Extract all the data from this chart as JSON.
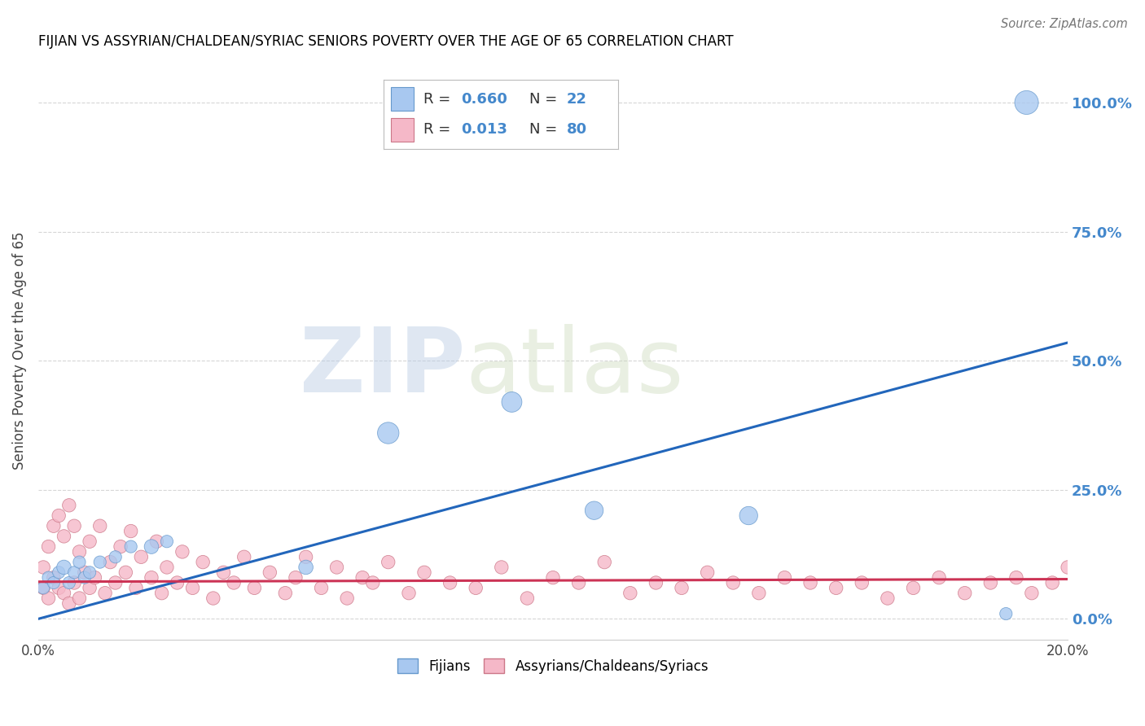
{
  "title": "FIJIAN VS ASSYRIAN/CHALDEAN/SYRIAC SENIORS POVERTY OVER THE AGE OF 65 CORRELATION CHART",
  "source": "Source: ZipAtlas.com",
  "ylabel": "Seniors Poverty Over the Age of 65",
  "ytick_labels": [
    "0.0%",
    "25.0%",
    "50.0%",
    "75.0%",
    "100.0%"
  ],
  "ytick_values": [
    0.0,
    0.25,
    0.5,
    0.75,
    1.0
  ],
  "xlim": [
    0.0,
    0.2
  ],
  "ylim": [
    -0.04,
    1.08
  ],
  "fijian_color": "#A8C8F0",
  "fijian_edge_color": "#6699CC",
  "assyrian_color": "#F5B8C8",
  "assyrian_edge_color": "#CC7788",
  "fijian_line_color": "#2266BB",
  "assyrian_line_color": "#CC3355",
  "fijian_R": 0.66,
  "fijian_N": 22,
  "assyrian_R": 0.013,
  "assyrian_N": 80,
  "watermark_zip": "ZIP",
  "watermark_atlas": "atlas",
  "background_color": "#FFFFFF",
  "grid_color": "#CCCCCC",
  "title_color": "#000000",
  "axis_label_color": "#4488CC",
  "fijian_line_x": [
    0.0,
    0.2
  ],
  "fijian_line_y": [
    0.0,
    0.535
  ],
  "assyrian_line_x": [
    0.0,
    0.2
  ],
  "assyrian_line_y": [
    0.072,
    0.077
  ],
  "fijian_scatter_x": [
    0.001,
    0.002,
    0.003,
    0.004,
    0.005,
    0.006,
    0.007,
    0.008,
    0.009,
    0.01,
    0.012,
    0.015,
    0.018,
    0.022,
    0.025,
    0.052,
    0.068,
    0.092,
    0.108,
    0.138,
    0.188,
    0.192
  ],
  "fijian_scatter_y": [
    0.06,
    0.08,
    0.07,
    0.09,
    0.1,
    0.07,
    0.09,
    0.11,
    0.08,
    0.09,
    0.11,
    0.12,
    0.14,
    0.14,
    0.15,
    0.1,
    0.36,
    0.42,
    0.21,
    0.2,
    0.01,
    1.0
  ],
  "fijian_scatter_sizes": [
    60,
    60,
    60,
    60,
    80,
    60,
    60,
    60,
    60,
    60,
    60,
    60,
    60,
    80,
    60,
    80,
    180,
    160,
    130,
    130,
    60,
    220
  ],
  "assyrian_scatter_x": [
    0.001,
    0.001,
    0.002,
    0.002,
    0.003,
    0.003,
    0.004,
    0.004,
    0.005,
    0.005,
    0.006,
    0.006,
    0.007,
    0.007,
    0.008,
    0.008,
    0.009,
    0.01,
    0.01,
    0.011,
    0.012,
    0.013,
    0.014,
    0.015,
    0.016,
    0.017,
    0.018,
    0.019,
    0.02,
    0.022,
    0.023,
    0.024,
    0.025,
    0.027,
    0.028,
    0.03,
    0.032,
    0.034,
    0.036,
    0.038,
    0.04,
    0.042,
    0.045,
    0.048,
    0.05,
    0.052,
    0.055,
    0.058,
    0.06,
    0.063,
    0.065,
    0.068,
    0.072,
    0.075,
    0.08,
    0.085,
    0.09,
    0.095,
    0.1,
    0.105,
    0.11,
    0.115,
    0.12,
    0.125,
    0.13,
    0.135,
    0.14,
    0.145,
    0.15,
    0.155,
    0.16,
    0.165,
    0.17,
    0.175,
    0.18,
    0.185,
    0.19,
    0.193,
    0.197,
    0.2
  ],
  "assyrian_scatter_y": [
    0.06,
    0.1,
    0.04,
    0.14,
    0.08,
    0.18,
    0.06,
    0.2,
    0.05,
    0.16,
    0.03,
    0.22,
    0.07,
    0.18,
    0.04,
    0.13,
    0.09,
    0.06,
    0.15,
    0.08,
    0.18,
    0.05,
    0.11,
    0.07,
    0.14,
    0.09,
    0.17,
    0.06,
    0.12,
    0.08,
    0.15,
    0.05,
    0.1,
    0.07,
    0.13,
    0.06,
    0.11,
    0.04,
    0.09,
    0.07,
    0.12,
    0.06,
    0.09,
    0.05,
    0.08,
    0.12,
    0.06,
    0.1,
    0.04,
    0.08,
    0.07,
    0.11,
    0.05,
    0.09,
    0.07,
    0.06,
    0.1,
    0.04,
    0.08,
    0.07,
    0.11,
    0.05,
    0.07,
    0.06,
    0.09,
    0.07,
    0.05,
    0.08,
    0.07,
    0.06,
    0.07,
    0.04,
    0.06,
    0.08,
    0.05,
    0.07,
    0.08,
    0.05,
    0.07,
    0.1
  ],
  "assyrian_scatter_sizes": [
    70,
    70,
    70,
    70,
    70,
    70,
    70,
    70,
    70,
    70,
    70,
    70,
    70,
    70,
    70,
    70,
    70,
    70,
    70,
    70,
    70,
    70,
    70,
    70,
    70,
    70,
    70,
    70,
    70,
    70,
    70,
    70,
    70,
    70,
    70,
    70,
    70,
    70,
    70,
    70,
    70,
    70,
    70,
    70,
    70,
    70,
    70,
    70,
    70,
    70,
    70,
    70,
    70,
    70,
    70,
    70,
    70,
    70,
    70,
    70,
    70,
    70,
    70,
    70,
    70,
    70,
    70,
    70,
    70,
    70,
    70,
    70,
    70,
    70,
    70,
    70,
    70,
    70,
    70,
    70
  ]
}
